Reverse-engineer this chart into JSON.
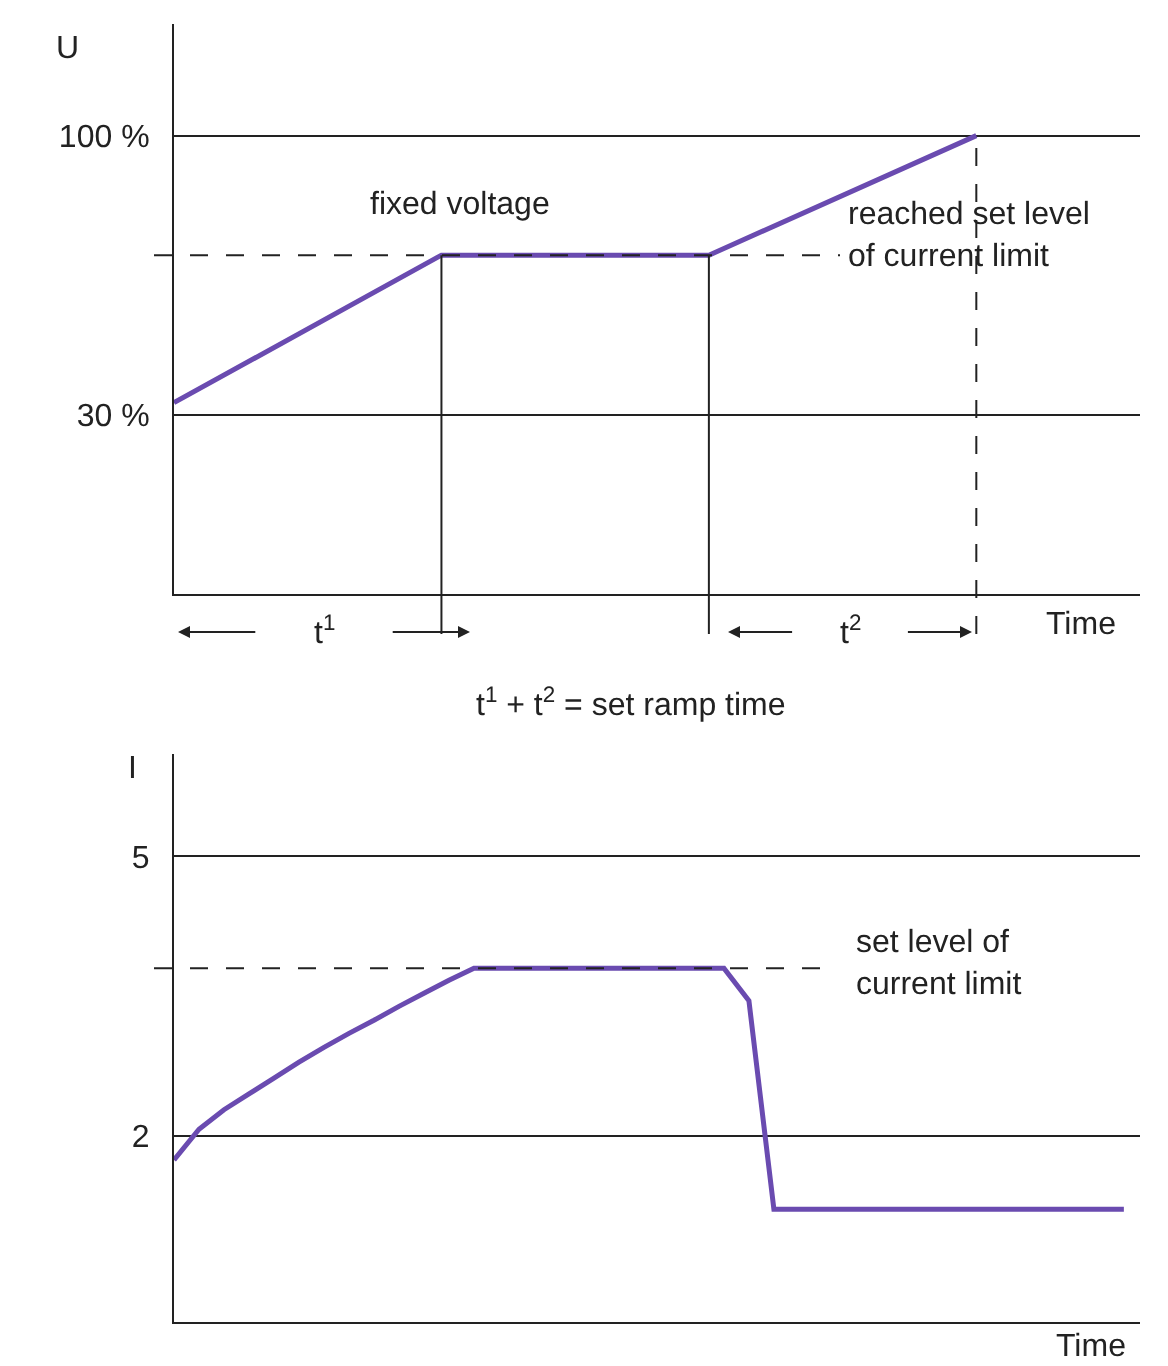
{
  "chart_data": [
    {
      "type": "line",
      "xlabel": "Time",
      "ylabel": "U",
      "categories": [
        null,
        null,
        null,
        null
      ],
      "series": [
        {
          "color": "#6a4bb0",
          "values": [
            33,
            70,
            70,
            100
          ]
        }
      ],
      "ylim": [
        -15,
        128
      ],
      "yticks": [
        {
          "value": 30,
          "label": "30 %"
        },
        {
          "value": 100,
          "label": "100 %"
        }
      ],
      "tick_labels": "y",
      "grid": true,
      "marker": "none",
      "line_style": "solid",
      "ref_lines": [
        {
          "axis": "y",
          "value": 70,
          "line_style": "dashed"
        }
      ],
      "annotations": [
        "fixed voltage",
        "reached set level\nof current limit",
        "t$^{1}$",
        "t$^{2}$",
        "t$^{1}$ + t$^{2}$ = set ramp time"
      ]
    },
    {
      "type": "line",
      "xlabel": "Time",
      "ylabel": "I",
      "categories": [
        null,
        null,
        null,
        null,
        null,
        null,
        null,
        null,
        null,
        null,
        null,
        null,
        null,
        null,
        null,
        null,
        null,
        null,
        null,
        null,
        null,
        null,
        null,
        null,
        null,
        null,
        null,
        null,
        null,
        null,
        null,
        null,
        null,
        null,
        null,
        null,
        null,
        null,
        null
      ],
      "series": [
        {
          "color": "#6a4bb0",
          "values": [
            1.74,
            2.07,
            2.28,
            2.45,
            2.62,
            2.79,
            2.95,
            3.1,
            3.24,
            3.39,
            3.53,
            3.67,
            3.8,
            3.8,
            3.8,
            3.8,
            3.8,
            3.8,
            3.8,
            3.8,
            3.8,
            3.8,
            3.8,
            3.45,
            1.21,
            1.21,
            1.21,
            1.21,
            1.21,
            1.21,
            1.21,
            1.21,
            1.21,
            1.21,
            1.21,
            1.21,
            1.21,
            1.21,
            1.21
          ]
        }
      ],
      "ylim": [
        0,
        6.1
      ],
      "yticks": [
        2,
        5
      ],
      "tick_labels": "y",
      "grid": "y",
      "marker": "none",
      "line_style": "solid",
      "ref_lines": [
        {
          "axis": "y",
          "value": 3.8,
          "line_style": "dashed"
        }
      ],
      "annotations": [
        "set level of\ncurrent limit"
      ]
    }
  ]
}
